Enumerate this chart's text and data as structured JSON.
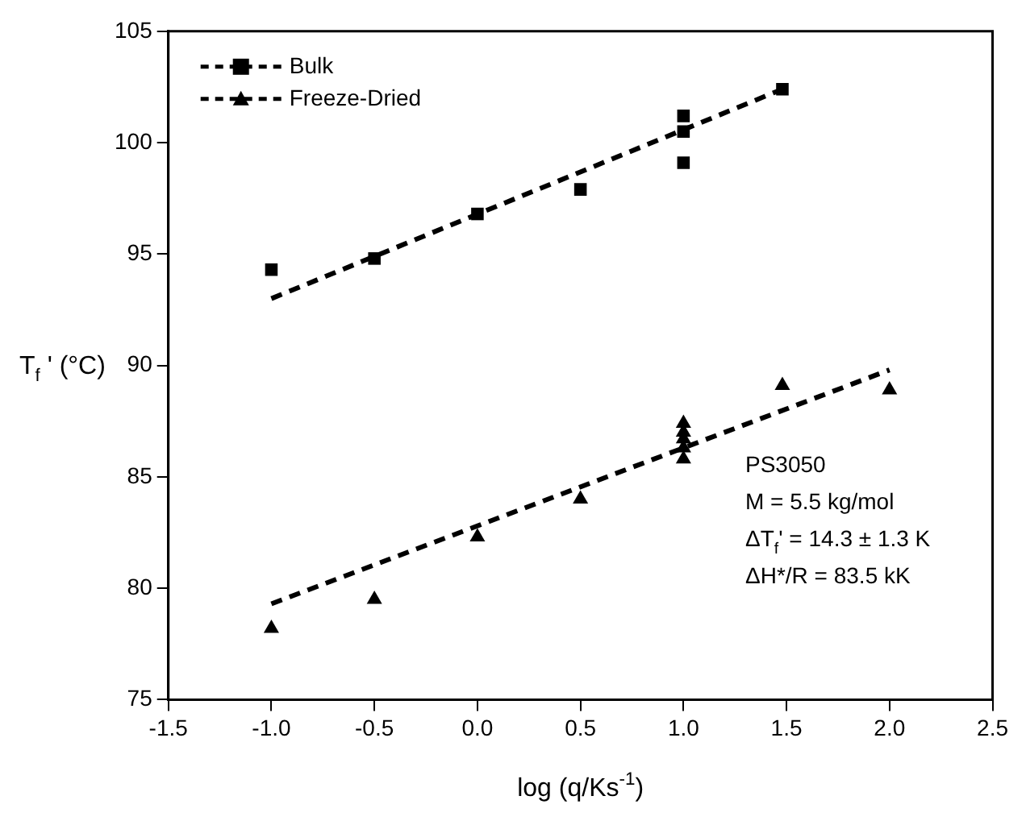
{
  "chart_data": {
    "type": "scatter",
    "xlabel": "log (q/Ks$^{-1}$)",
    "ylabel": "T$_{f}$ ' (°C)",
    "xlim": [
      -1.5,
      2.5
    ],
    "xticks": [
      {
        "value": -1.5,
        "label": "-1.5"
      },
      {
        "value": -1,
        "label": "-1.0"
      },
      {
        "value": -0.5,
        "label": "-0.5"
      },
      {
        "value": 0,
        "label": "0.0"
      },
      {
        "value": 0.5,
        "label": "0.5"
      },
      {
        "value": 1,
        "label": "1.0"
      },
      {
        "value": 1.5,
        "label": "1.5"
      },
      {
        "value": 2,
        "label": "2.0"
      },
      {
        "value": 2.5,
        "label": "2.5"
      }
    ],
    "ylim": [
      75,
      105
    ],
    "yticks": [
      75,
      80,
      85,
      90,
      95,
      100,
      105
    ],
    "legend": "top left",
    "series": [
      {
        "name": "Bulk",
        "marker": "square",
        "color": "#000000",
        "x": [
          -1,
          -0.5,
          0,
          0.5,
          1,
          1,
          1,
          1.48
        ],
        "values": [
          94.3,
          94.8,
          96.8,
          97.9,
          101.2,
          100.5,
          99.1,
          102.4
        ]
      },
      {
        "name": "Freeze-Dried",
        "marker": "triangle",
        "color": "#000000",
        "x": [
          -1,
          -0.5,
          0,
          0.5,
          1,
          1,
          1,
          1,
          1,
          1.48,
          2
        ],
        "values": [
          78.2,
          79.5,
          82.3,
          84.0,
          85.8,
          86.3,
          86.7,
          87.0,
          87.4,
          89.1,
          88.9
        ]
      },
      {
        "type": "line",
        "line_style": "dashed",
        "marker": "none",
        "color": "#000000",
        "x": [
          -1,
          1.48
        ],
        "values": [
          93.0,
          102.4
        ]
      },
      {
        "type": "line",
        "line_style": "dashed",
        "marker": "none",
        "color": "#000000",
        "x": [
          -1,
          2
        ],
        "values": [
          79.3,
          89.8
        ]
      }
    ],
    "annotations": [
      {
        "text": "PS3050"
      },
      {
        "text": "M = 5.5 kg/mol"
      },
      {
        "text": "ΔT$_{f}$' = 14.3 ± 1.3 K"
      },
      {
        "text": "ΔH*/R = 83.5 kK"
      }
    ]
  }
}
